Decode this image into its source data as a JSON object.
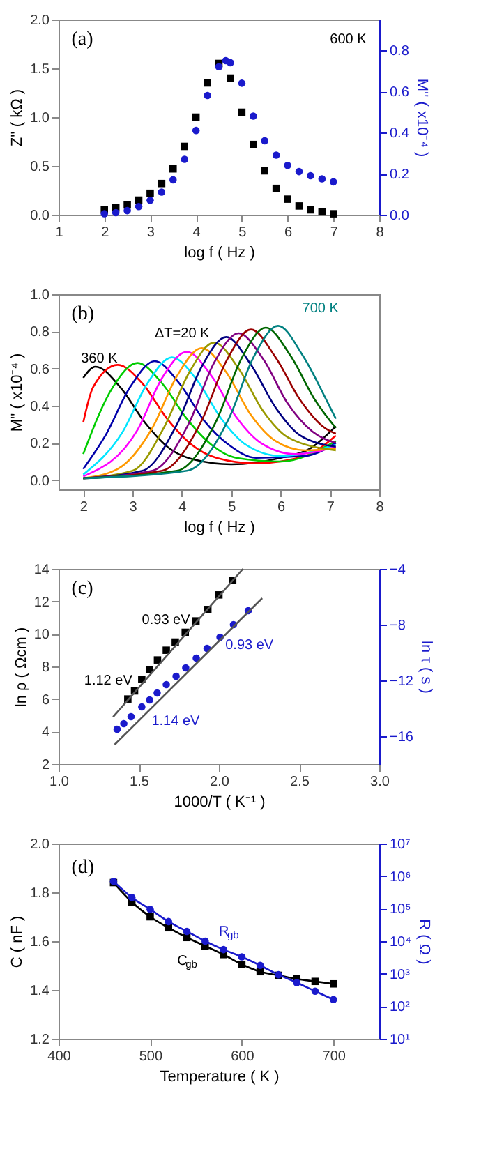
{
  "chart_data": [
    {
      "type": "scatter",
      "xlabel": "log f ( Hz )",
      "ylabel": "Z'' ( kΩ )",
      "y2label": "M'' ( x10⁻⁴ )",
      "annotations": [
        "(a)",
        "600 K"
      ],
      "xlim": [
        1,
        8
      ],
      "xticks": [
        1,
        2,
        3,
        4,
        5,
        6,
        7,
        8
      ],
      "ylim": [
        0,
        2
      ],
      "yticks": [
        {
          "value": 0,
          "label": "0.0"
        },
        {
          "value": 0.5,
          "label": "0.5"
        },
        {
          "value": 1,
          "label": "1.0"
        },
        {
          "value": 1.5,
          "label": "1.5"
        },
        {
          "value": 2,
          "label": "2.0"
        }
      ],
      "y2lim": [
        0,
        0.95
      ],
      "y2ticks": [
        {
          "value": 0,
          "label": "0.0"
        },
        0.2,
        0.4,
        0.6,
        0.8
      ],
      "series": [
        {
          "color": "#000000",
          "marker": "square",
          "x": [
            2,
            2.25,
            2.5,
            2.75,
            3,
            3.25,
            3.5,
            3.75,
            4,
            4.25,
            4.5,
            4.75,
            5,
            5.25,
            5.5,
            5.75,
            6,
            6.25,
            6.5,
            6.75,
            7
          ],
          "values": [
            0.05,
            0.07,
            0.1,
            0.15,
            0.22,
            0.32,
            0.47,
            0.7,
            1.0,
            1.35,
            1.55,
            1.4,
            1.05,
            0.72,
            0.45,
            0.27,
            0.16,
            0.09,
            0.05,
            0.03,
            0.01
          ]
        },
        {
          "color": "#1a1acc",
          "marker": "circle",
          "axis": "y2",
          "x": [
            2,
            2.25,
            2.5,
            2.75,
            3,
            3.25,
            3.5,
            3.75,
            4,
            4.25,
            4.5,
            4.65,
            4.75,
            5,
            5.25,
            5.5,
            5.75,
            6,
            6.25,
            6.5,
            6.75,
            7
          ],
          "values": [
            0.005,
            0.01,
            0.02,
            0.04,
            0.07,
            0.11,
            0.17,
            0.27,
            0.41,
            0.58,
            0.72,
            0.75,
            0.74,
            0.64,
            0.48,
            0.36,
            0.29,
            0.24,
            0.21,
            0.19,
            0.175,
            0.16
          ]
        }
      ]
    },
    {
      "type": "line",
      "xlabel": "log f ( Hz )",
      "ylabel": "M'' ( x10⁻⁴ )",
      "annotations": [
        "(b)",
        "ΔT=20 K",
        "360 K",
        "700 K"
      ],
      "xlim": [
        1.5,
        8
      ],
      "xticks": [
        2,
        3,
        4,
        5,
        6,
        7,
        8
      ],
      "ylim": [
        -0.05,
        1
      ],
      "yticks": [
        {
          "value": 0,
          "label": "0.0"
        },
        0.2,
        0.4,
        0.6,
        0.8,
        {
          "value": 1,
          "label": "1.0"
        }
      ],
      "series": [
        {
          "color": "#000000",
          "x": [
            2,
            2.25,
            2.75,
            3.25,
            3.75,
            4.25,
            5,
            6,
            6.6,
            7.12
          ],
          "values": [
            0.55,
            0.61,
            0.5,
            0.31,
            0.17,
            0.11,
            0.085,
            0.12,
            0.17,
            0.29
          ]
        },
        {
          "color": "#ff0000",
          "x": [
            2,
            2.2,
            2.7,
            3.2,
            3.7,
            4.2,
            4.7,
            5.5,
            6.5,
            7.12
          ],
          "values": [
            0.31,
            0.5,
            0.62,
            0.52,
            0.33,
            0.19,
            0.12,
            0.09,
            0.13,
            0.24
          ]
        },
        {
          "color": "#00cc00",
          "x": [
            2,
            2.6,
            3.1,
            3.6,
            4.1,
            4.6,
            5.1,
            6,
            7.12
          ],
          "values": [
            0.14,
            0.5,
            0.63,
            0.52,
            0.33,
            0.19,
            0.12,
            0.1,
            0.21
          ]
        },
        {
          "color": "#0000aa",
          "x": [
            2,
            2.45,
            2.95,
            3.45,
            3.95,
            4.45,
            4.95,
            5.5,
            6.5,
            7.12
          ],
          "values": [
            0.06,
            0.24,
            0.5,
            0.64,
            0.52,
            0.32,
            0.19,
            0.12,
            0.13,
            0.2
          ]
        },
        {
          "color": "#00e5ff",
          "x": [
            2,
            2.8,
            3.3,
            3.8,
            4.3,
            4.8,
            5.3,
            6,
            7.12
          ],
          "values": [
            0.03,
            0.26,
            0.52,
            0.66,
            0.54,
            0.33,
            0.19,
            0.13,
            0.19
          ]
        },
        {
          "color": "#ff00ff",
          "x": [
            2,
            3.1,
            3.6,
            4.1,
            4.6,
            5.1,
            5.6,
            6.3,
            7.12
          ],
          "values": [
            0.02,
            0.27,
            0.55,
            0.69,
            0.56,
            0.34,
            0.2,
            0.14,
            0.18
          ]
        },
        {
          "color": "#ff9900",
          "x": [
            2,
            2.7,
            3.4,
            3.9,
            4.4,
            4.9,
            5.4,
            5.9,
            6.5,
            7.12
          ],
          "values": [
            0.01,
            0.06,
            0.28,
            0.56,
            0.71,
            0.58,
            0.35,
            0.21,
            0.16,
            0.17
          ]
        },
        {
          "color": "#999900",
          "x": [
            2,
            3,
            3.65,
            4.15,
            4.65,
            5.15,
            5.65,
            6.15,
            7.12
          ],
          "values": [
            0.01,
            0.05,
            0.29,
            0.58,
            0.74,
            0.6,
            0.37,
            0.23,
            0.16
          ]
        },
        {
          "color": "#000080",
          "x": [
            2,
            3.2,
            3.9,
            4.4,
            4.9,
            5.4,
            5.9,
            6.4,
            7.12
          ],
          "values": [
            0.01,
            0.05,
            0.3,
            0.61,
            0.77,
            0.62,
            0.39,
            0.24,
            0.18
          ]
        },
        {
          "color": "#800080",
          "x": [
            2,
            3.4,
            4.15,
            4.65,
            5.15,
            5.65,
            6.15,
            6.65,
            7.12
          ],
          "values": [
            0.01,
            0.05,
            0.31,
            0.63,
            0.79,
            0.65,
            0.41,
            0.26,
            0.2
          ]
        },
        {
          "color": "#990000",
          "x": [
            2,
            3.6,
            4.4,
            4.9,
            5.4,
            5.9,
            6.4,
            6.9,
            7.12
          ],
          "values": [
            0.01,
            0.05,
            0.32,
            0.64,
            0.81,
            0.66,
            0.43,
            0.28,
            0.25
          ]
        },
        {
          "color": "#006600",
          "x": [
            2,
            3.9,
            4.7,
            5.2,
            5.7,
            6.2,
            6.7,
            7.12
          ],
          "values": [
            0.01,
            0.05,
            0.32,
            0.65,
            0.82,
            0.67,
            0.43,
            0.28
          ]
        },
        {
          "color": "#008080",
          "x": [
            2,
            4.1,
            4.95,
            5.45,
            5.95,
            6.45,
            6.95,
            7.12
          ],
          "values": [
            0.01,
            0.05,
            0.33,
            0.66,
            0.83,
            0.67,
            0.42,
            0.33
          ]
        }
      ]
    },
    {
      "type": "scatter",
      "xlabel": "1000/T ( K⁻¹ )",
      "ylabel": "ln ρ ( Ωcm )",
      "y2label": "ln τ ( s )",
      "annotations": [
        "(c)",
        "0.93 eV",
        "1.12 eV",
        "0.93 eV",
        "1.14 eV"
      ],
      "xlim": [
        1,
        3
      ],
      "xticks": [
        {
          "value": 1,
          "label": "1.0"
        },
        1.5,
        {
          "value": 2,
          "label": "2.0"
        },
        2.5,
        {
          "value": 3,
          "label": "3.0"
        }
      ],
      "ylim": [
        2,
        14
      ],
      "yticks": [
        2,
        4,
        6,
        8,
        10,
        12,
        14
      ],
      "y2lim": [
        -18,
        -4
      ],
      "y2ticks": [
        -4,
        -8,
        -12,
        -16
      ],
      "series": [
        {
          "color": "#000000",
          "marker": "square",
          "x": [
            1.432,
            1.474,
            1.519,
            1.568,
            1.617,
            1.672,
            1.728,
            1.79,
            1.857,
            1.931,
            2.0,
            2.086
          ],
          "values": [
            6.0,
            6.5,
            7.2,
            7.8,
            8.4,
            9.0,
            9.5,
            10.1,
            10.8,
            11.5,
            12.4,
            13.3
          ]
        },
        {
          "color": "#1a1acc",
          "marker": "circle",
          "axis": "y2",
          "x": [
            1.365,
            1.407,
            1.452,
            1.519,
            1.568,
            1.615,
            1.672,
            1.733,
            1.793,
            1.859,
            1.926,
            2.007,
            2.091,
            2.183
          ],
          "values": [
            -15.5,
            -15.1,
            -14.6,
            -13.9,
            -13.4,
            -12.9,
            -12.3,
            -11.7,
            -11.1,
            -10.4,
            -9.7,
            -8.9,
            -8.0,
            -7.0
          ]
        },
        {
          "type": "line",
          "color": "#555555",
          "x": [
            1.34,
            2.15
          ],
          "values": [
            4.9,
            14.0
          ]
        },
        {
          "type": "line",
          "color": "#555555",
          "axis": "y2",
          "x": [
            1.35,
            2.27
          ],
          "values": [
            -16.6,
            -6.1
          ]
        }
      ]
    },
    {
      "type": "line",
      "xlabel": "Temperature ( K )",
      "ylabel": "C ( nF )",
      "y2label": "R ( Ω )",
      "annotations": [
        "(d)",
        "R$_{gb}$",
        "C$_{gb}$"
      ],
      "log": "y2",
      "xlim": [
        400,
        750
      ],
      "xticks": [
        400,
        500,
        600,
        700
      ],
      "ylim": [
        1.2,
        2
      ],
      "yticks": [
        1.2,
        1.4,
        1.6,
        1.8,
        {
          "value": 2,
          "label": "2.0"
        }
      ],
      "y2lim": [
        10,
        10000000
      ],
      "y2ticks": [
        {
          "value": 10,
          "label": "10¹"
        },
        {
          "value": 100,
          "label": "10²"
        },
        {
          "value": 1000,
          "label": "10³"
        },
        {
          "value": 10000,
          "label": "10⁴"
        },
        {
          "value": 100000,
          "label": "10⁵"
        },
        {
          "value": 1000000,
          "label": "10⁶"
        },
        {
          "value": 10000000,
          "label": "10⁷"
        }
      ],
      "series": [
        {
          "color": "#000000",
          "marker": "square",
          "x": [
            460,
            480,
            500,
            520,
            540,
            560,
            580,
            600,
            620,
            640,
            660,
            680,
            700
          ],
          "values": [
            1.84,
            1.76,
            1.7,
            1.655,
            1.615,
            1.58,
            1.545,
            1.505,
            1.475,
            1.46,
            1.445,
            1.435,
            1.425
          ]
        },
        {
          "color": "#1a1acc",
          "marker": "circle",
          "axis": "y2",
          "x": [
            460,
            480,
            500,
            520,
            540,
            560,
            580,
            600,
            620,
            640,
            660,
            680,
            700
          ],
          "values": [
            690000,
            220000,
            95000,
            40000,
            20000,
            10000,
            5500,
            3300,
            1800,
            930,
            530,
            290,
            160
          ]
        }
      ]
    }
  ]
}
